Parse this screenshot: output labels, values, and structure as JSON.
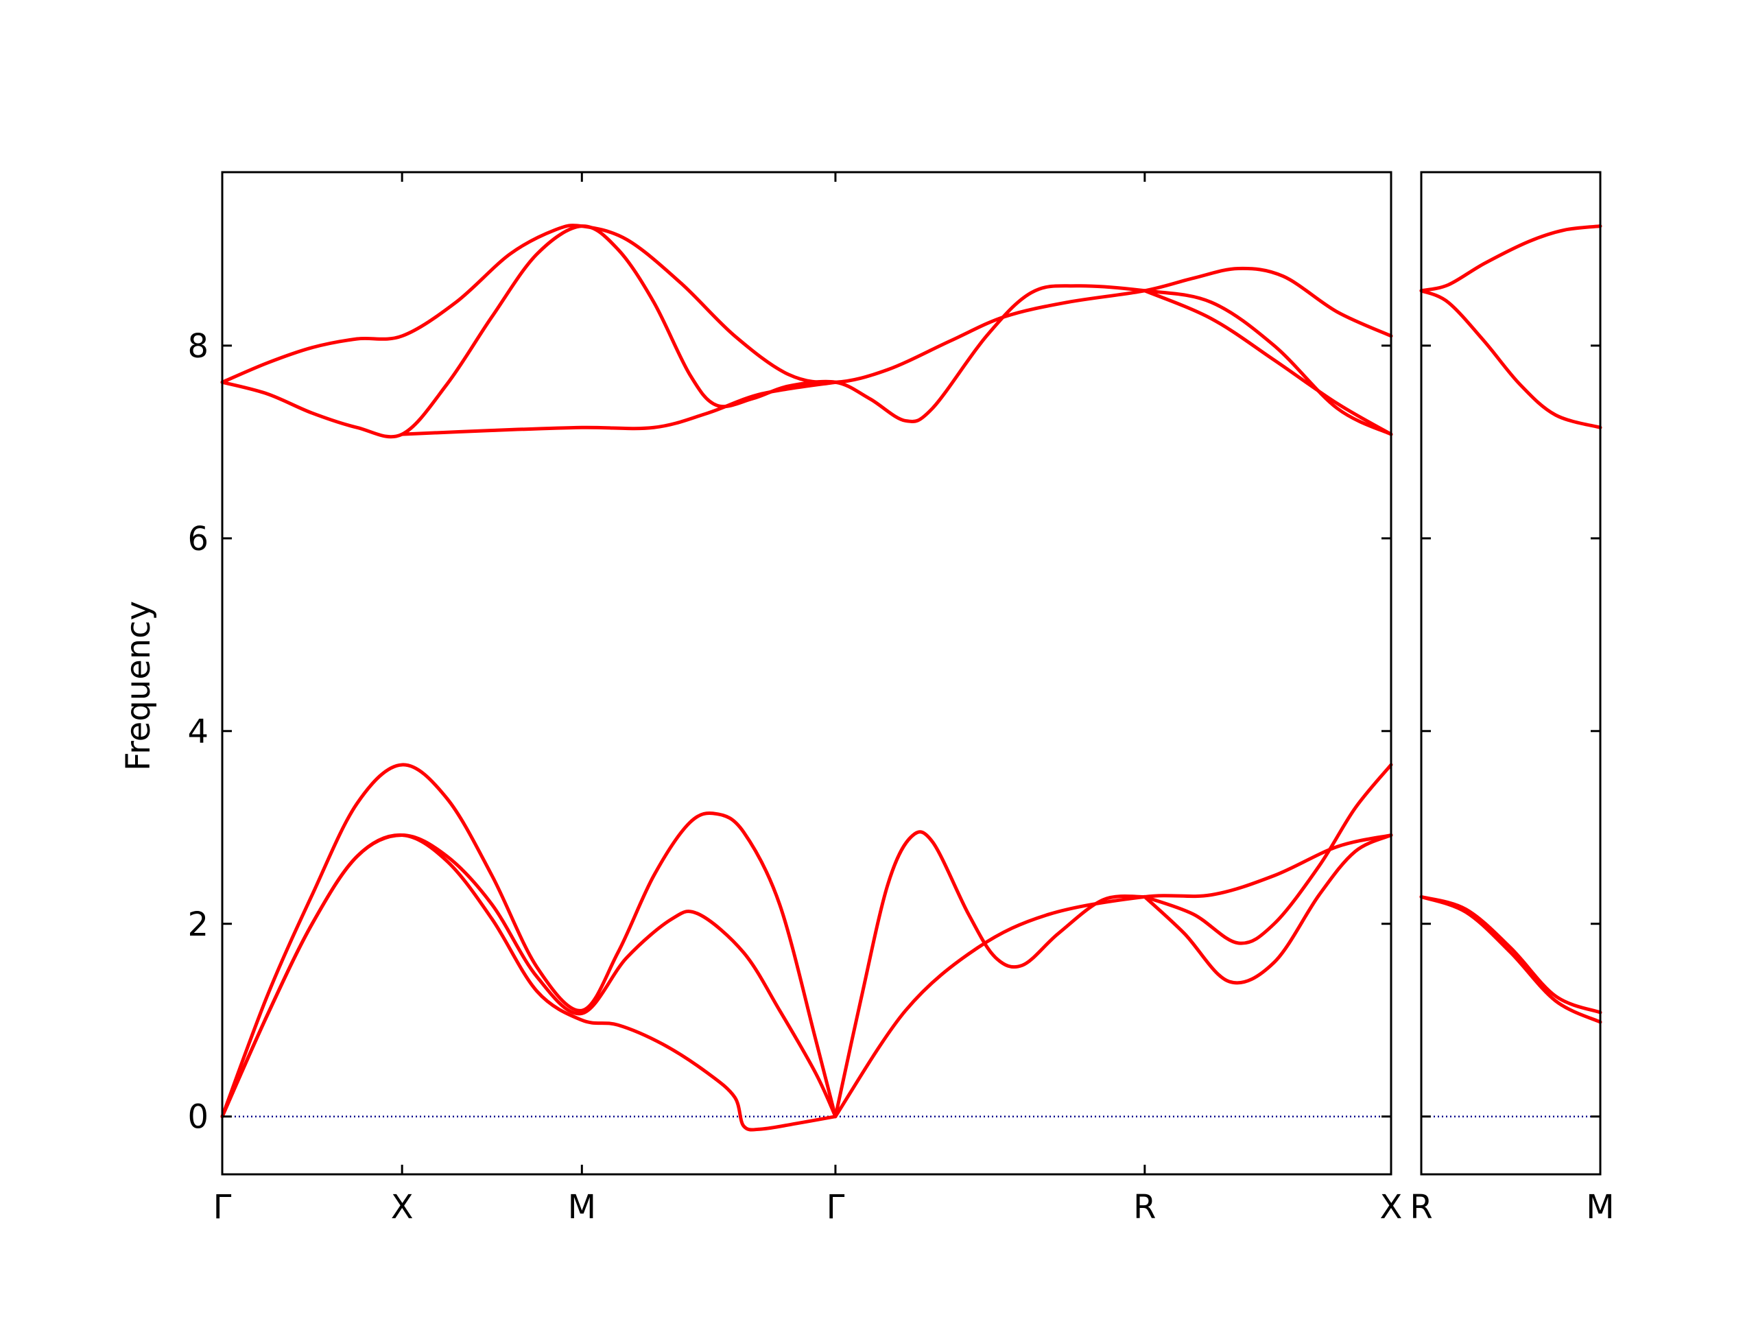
{
  "chart_data": {
    "type": "line",
    "ylabel": "Frequency",
    "ylim": [
      -0.6,
      9.8
    ],
    "yticks": [
      0,
      2,
      4,
      6,
      8
    ],
    "colors": {
      "band": "#ff0000",
      "zero": "#00008b"
    },
    "panels": [
      {
        "id": "main",
        "xlim": [
          0,
          6.5
        ],
        "xticks": [
          {
            "x": 0,
            "label": "Γ"
          },
          {
            "x": 1,
            "label": "X"
          },
          {
            "x": 2,
            "label": "M"
          },
          {
            "x": 3.41,
            "label": "Γ"
          },
          {
            "x": 5.13,
            "label": "R"
          },
          {
            "x": 6.5,
            "label": "X"
          }
        ],
        "series": [
          {
            "points": [
              [
                0,
                0
              ],
              [
                0.25,
                1.25
              ],
              [
                0.5,
                2.3
              ],
              [
                0.75,
                3.25
              ],
              [
                1,
                3.65
              ],
              [
                1.25,
                3.3
              ],
              [
                1.5,
                2.5
              ],
              [
                1.75,
                1.55
              ],
              [
                2,
                1.1
              ],
              [
                2.2,
                1.7
              ],
              [
                2.4,
                2.5
              ],
              [
                2.6,
                3.05
              ],
              [
                2.75,
                3.14
              ],
              [
                2.9,
                2.95
              ],
              [
                3.1,
                2.2
              ],
              [
                3.3,
                0.8
              ],
              [
                3.41,
                0
              ]
            ]
          },
          {
            "points": [
              [
                0,
                0
              ],
              [
                0.25,
                1.05
              ],
              [
                0.5,
                2.0
              ],
              [
                0.75,
                2.7
              ],
              [
                1,
                2.92
              ],
              [
                1.25,
                2.7
              ],
              [
                1.5,
                2.2
              ],
              [
                1.75,
                1.45
              ],
              [
                2,
                1.07
              ],
              [
                2.25,
                1.65
              ],
              [
                2.5,
                2.05
              ],
              [
                2.65,
                2.1
              ],
              [
                2.9,
                1.7
              ],
              [
                3.1,
                1.1
              ],
              [
                3.3,
                0.45
              ],
              [
                3.41,
                0
              ]
            ]
          },
          {
            "points": [
              [
                0,
                0
              ],
              [
                0.25,
                1.05
              ],
              [
                0.5,
                2.0
              ],
              [
                0.75,
                2.7
              ],
              [
                1,
                2.92
              ],
              [
                1.25,
                2.65
              ],
              [
                1.5,
                2.05
              ],
              [
                1.75,
                1.3
              ],
              [
                2,
                1.0
              ],
              [
                2.2,
                0.95
              ],
              [
                2.45,
                0.75
              ],
              [
                2.7,
                0.45
              ],
              [
                2.85,
                0.2
              ],
              [
                2.9,
                -0.1
              ],
              [
                3.0,
                -0.13
              ],
              [
                3.2,
                -0.07
              ],
              [
                3.41,
                0
              ]
            ]
          },
          {
            "points": [
              [
                3.41,
                0
              ],
              [
                3.55,
                1.2
              ],
              [
                3.7,
                2.4
              ],
              [
                3.83,
                2.9
              ],
              [
                3.95,
                2.85
              ],
              [
                4.15,
                2.1
              ],
              [
                4.3,
                1.65
              ],
              [
                4.45,
                1.57
              ],
              [
                4.65,
                1.9
              ],
              [
                4.9,
                2.25
              ],
              [
                5.13,
                2.28
              ]
            ]
          },
          {
            "points": [
              [
                3.41,
                0
              ],
              [
                3.8,
                1.1
              ],
              [
                4.2,
                1.75
              ],
              [
                4.6,
                2.1
              ],
              [
                5.13,
                2.28
              ],
              [
                5.5,
                2.3
              ],
              [
                5.85,
                2.5
              ],
              [
                6.2,
                2.8
              ],
              [
                6.5,
                2.92
              ]
            ]
          },
          {
            "points": [
              [
                5.13,
                2.28
              ],
              [
                5.4,
                2.1
              ],
              [
                5.65,
                1.8
              ],
              [
                5.85,
                2.0
              ],
              [
                6.1,
                2.6
              ],
              [
                6.3,
                3.2
              ],
              [
                6.5,
                3.65
              ]
            ]
          },
          {
            "points": [
              [
                5.13,
                2.28
              ],
              [
                5.35,
                1.9
              ],
              [
                5.6,
                1.4
              ],
              [
                5.85,
                1.6
              ],
              [
                6.1,
                2.3
              ],
              [
                6.3,
                2.75
              ],
              [
                6.5,
                2.92
              ]
            ]
          },
          {
            "points": [
              [
                0,
                7.62
              ],
              [
                0.25,
                7.82
              ],
              [
                0.5,
                7.98
              ],
              [
                0.75,
                8.07
              ],
              [
                1,
                8.1
              ],
              [
                1.3,
                8.45
              ],
              [
                1.6,
                8.95
              ],
              [
                1.85,
                9.2
              ],
              [
                2,
                9.24
              ],
              [
                2.25,
                9.1
              ],
              [
                2.55,
                8.65
              ],
              [
                2.85,
                8.1
              ],
              [
                3.15,
                7.7
              ],
              [
                3.41,
                7.62
              ],
              [
                3.7,
                7.75
              ],
              [
                4.05,
                8.05
              ],
              [
                4.35,
                8.3
              ],
              [
                4.7,
                8.45
              ],
              [
                5.13,
                8.57
              ],
              [
                5.4,
                8.7
              ],
              [
                5.65,
                8.8
              ],
              [
                5.9,
                8.72
              ],
              [
                6.2,
                8.35
              ],
              [
                6.5,
                8.1
              ]
            ]
          },
          {
            "points": [
              [
                0,
                7.62
              ],
              [
                0.25,
                7.5
              ],
              [
                0.5,
                7.3
              ],
              [
                0.75,
                7.15
              ],
              [
                1,
                7.08
              ],
              [
                1.25,
                7.6
              ],
              [
                1.5,
                8.3
              ],
              [
                1.75,
                8.95
              ],
              [
                2,
                9.24
              ],
              [
                2.2,
                9.0
              ],
              [
                2.4,
                8.45
              ],
              [
                2.6,
                7.7
              ],
              [
                2.75,
                7.38
              ],
              [
                2.95,
                7.45
              ],
              [
                3.15,
                7.58
              ],
              [
                3.41,
                7.62
              ],
              [
                3.6,
                7.45
              ],
              [
                3.8,
                7.22
              ],
              [
                3.95,
                7.35
              ],
              [
                4.25,
                8.1
              ],
              [
                4.5,
                8.55
              ],
              [
                4.75,
                8.62
              ],
              [
                5.13,
                8.57
              ],
              [
                5.5,
                8.45
              ],
              [
                5.85,
                8.0
              ],
              [
                6.2,
                7.35
              ],
              [
                6.5,
                7.08
              ]
            ]
          },
          {
            "points": [
              [
                1,
                7.08
              ],
              [
                1.5,
                7.12
              ],
              [
                2,
                7.15
              ],
              [
                2.4,
                7.15
              ],
              [
                2.7,
                7.3
              ],
              [
                3.0,
                7.5
              ],
              [
                3.41,
                7.62
              ]
            ]
          },
          {
            "points": [
              [
                5.13,
                8.57
              ],
              [
                5.5,
                8.28
              ],
              [
                5.85,
                7.85
              ],
              [
                6.2,
                7.4
              ],
              [
                6.5,
                7.08
              ]
            ]
          }
        ]
      },
      {
        "id": "side",
        "xlim": [
          0,
          1
        ],
        "xticks": [
          {
            "x": 0,
            "label": "R"
          },
          {
            "x": 1,
            "label": "M"
          }
        ],
        "series": [
          {
            "points": [
              [
                0,
                8.57
              ],
              [
                0.15,
                8.63
              ],
              [
                0.35,
                8.85
              ],
              [
                0.6,
                9.08
              ],
              [
                0.8,
                9.2
              ],
              [
                1,
                9.24
              ]
            ]
          },
          {
            "points": [
              [
                0,
                8.57
              ],
              [
                0.15,
                8.45
              ],
              [
                0.35,
                8.05
              ],
              [
                0.55,
                7.6
              ],
              [
                0.75,
                7.28
              ],
              [
                1,
                7.15
              ]
            ]
          },
          {
            "points": [
              [
                0,
                2.28
              ],
              [
                0.25,
                2.15
              ],
              [
                0.5,
                1.75
              ],
              [
                0.75,
                1.25
              ],
              [
                1,
                1.08
              ]
            ]
          },
          {
            "points": [
              [
                0,
                2.28
              ],
              [
                0.25,
                2.12
              ],
              [
                0.5,
                1.7
              ],
              [
                0.75,
                1.2
              ],
              [
                1,
                0.98
              ]
            ]
          }
        ]
      }
    ]
  }
}
